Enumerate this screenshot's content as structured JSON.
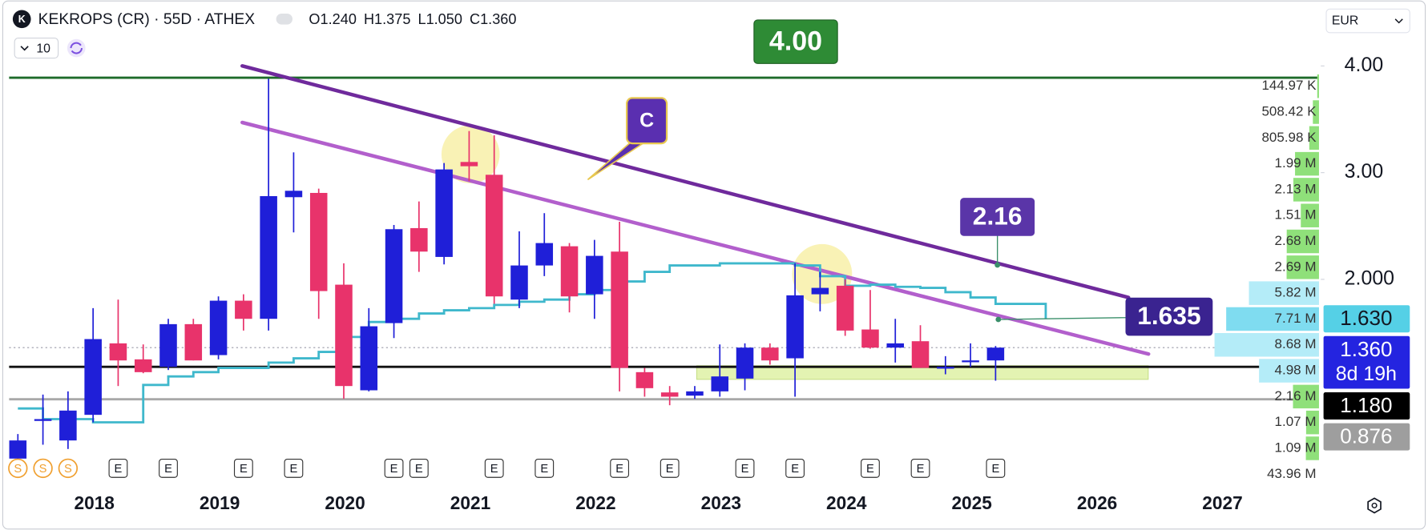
{
  "header": {
    "logo": "K",
    "title": "KEKROPS (CR) · 55D · ATHEX",
    "ohlc": [
      "O",
      "1.240",
      "H",
      "1.375",
      "L",
      "1.050",
      "C",
      "1.360"
    ],
    "interval_count": "10",
    "currency": "EUR"
  },
  "chart_data": {
    "type": "candlestick",
    "xlim": [
      2017.32,
      2027.77
    ],
    "xticks": [
      2018,
      2019,
      2020,
      2021,
      2022,
      2023,
      2024,
      2025,
      2026,
      2027
    ],
    "ylim": [
      0.11,
      4.55
    ],
    "yticks": [
      {
        "value": 4,
        "label": "4.00"
      },
      {
        "value": 3,
        "label": "3.00"
      },
      {
        "value": 2,
        "label": "2.000"
      }
    ],
    "log_scale": false,
    "grid": false,
    "up_color": "#1f1fd8",
    "down_color": "#e8336b",
    "candles": {
      "x": [
        2017.39,
        2017.59,
        2017.79,
        2017.99,
        2018.19,
        2018.39,
        2018.59,
        2018.79,
        2018.99,
        2019.19,
        2019.39,
        2019.59,
        2019.79,
        2019.99,
        2020.19,
        2020.39,
        2020.59,
        2020.79,
        2020.99,
        2021.19,
        2021.39,
        2021.59,
        2021.79,
        2021.99,
        2022.19,
        2022.39,
        2022.59,
        2022.79,
        2022.99,
        2023.19,
        2023.39,
        2023.59,
        2023.79,
        2023.99,
        2024.19,
        2024.39,
        2024.59,
        2024.79,
        2024.99,
        2025.19
      ],
      "open": [
        0.32,
        0.68,
        0.49,
        0.73,
        1.4,
        1.25,
        1.18,
        1.58,
        1.29,
        1.8,
        1.63,
        2.77,
        2.81,
        1.95,
        0.96,
        1.59,
        2.48,
        2.21,
        3.1,
        2.98,
        1.81,
        2.13,
        2.31,
        1.86,
        2.26,
        1.13,
        0.94,
        0.91,
        0.95,
        1.07,
        1.36,
        1.26,
        1.86,
        1.94,
        1.53,
        1.36,
        1.42,
        1.18,
        1.23,
        1.24
      ],
      "high": [
        0.55,
        0.92,
        0.95,
        1.73,
        1.81,
        1.39,
        1.63,
        1.63,
        1.84,
        1.86,
        3.88,
        3.19,
        2.85,
        2.15,
        1.73,
        2.51,
        2.73,
        3.09,
        3.39,
        3.35,
        2.45,
        2.62,
        2.34,
        2.37,
        2.54,
        1.17,
        1.0,
        1.0,
        1.39,
        1.4,
        1.4,
        2.15,
        2.07,
        2.0,
        1.9,
        1.63,
        1.57,
        1.28,
        1.4,
        1.375
      ],
      "low": [
        0.3,
        0.45,
        0.41,
        0.66,
        1.0,
        1.12,
        1.15,
        1.24,
        1.25,
        1.52,
        1.52,
        2.44,
        1.63,
        0.88,
        0.95,
        1.45,
        2.07,
        2.14,
        2.92,
        1.77,
        1.73,
        2.03,
        1.69,
        1.63,
        0.95,
        0.9,
        0.82,
        0.88,
        0.9,
        0.96,
        1.2,
        0.9,
        1.7,
        1.47,
        1.35,
        1.22,
        1.17,
        1.11,
        1.18,
        1.05
      ],
      "close": [
        0.49,
        0.69,
        0.77,
        1.44,
        1.24,
        1.13,
        1.58,
        1.24,
        1.8,
        1.63,
        2.78,
        2.83,
        1.89,
        1.0,
        1.56,
        2.47,
        2.26,
        3.03,
        3.06,
        1.84,
        2.13,
        2.34,
        1.84,
        2.22,
        1.17,
        0.98,
        0.9,
        0.95,
        1.09,
        1.36,
        1.24,
        1.85,
        1.92,
        1.52,
        1.36,
        1.4,
        1.17,
        1.18,
        1.24,
        1.36
      ]
    },
    "ma": {
      "color": "#3fb8cc",
      "x": [
        2017.39,
        2017.59,
        2017.79,
        2017.99,
        2018.19,
        2018.39,
        2018.59,
        2018.79,
        2018.99,
        2019.19,
        2019.39,
        2019.59,
        2019.79,
        2019.99,
        2020.19,
        2020.39,
        2020.59,
        2020.79,
        2020.99,
        2021.19,
        2021.39,
        2021.59,
        2021.79,
        2021.99,
        2022.19,
        2022.39,
        2022.59,
        2022.79,
        2022.99,
        2023.19,
        2023.39,
        2023.59,
        2023.79,
        2023.99,
        2024.19,
        2024.39,
        2024.59,
        2024.79,
        2024.99,
        2025.19,
        2025.59
      ],
      "values": [
        0.79,
        0.69,
        0.69,
        0.66,
        0.66,
        1.01,
        1.09,
        1.13,
        1.17,
        1.17,
        1.22,
        1.26,
        1.32,
        1.46,
        1.6,
        1.63,
        1.68,
        1.71,
        1.73,
        1.76,
        1.79,
        1.81,
        1.86,
        1.9,
        1.98,
        2.07,
        2.13,
        2.13,
        2.15,
        2.15,
        2.15,
        2.13,
        2.03,
        1.94,
        1.95,
        1.93,
        1.92,
        1.88,
        1.83,
        1.77,
        1.63
      ]
    },
    "trendlines": [
      {
        "color": "#6f2a9c",
        "x": [
          2019.18,
          2026.25
        ],
        "values": [
          4.0,
          1.83
        ]
      },
      {
        "color": "#b25fcc",
        "x": [
          2019.18,
          2026.41
        ],
        "values": [
          3.47,
          1.3
        ]
      }
    ],
    "price_lines": [
      {
        "value": 3.89,
        "color": "#1e6b2a",
        "style": "solid"
      },
      {
        "value": 1.36,
        "color": "#9a9aa8",
        "style": "dotted"
      },
      {
        "value": 1.18,
        "color": "#111111",
        "style": "solid"
      },
      {
        "value": 0.876,
        "color": "#a8a8a8",
        "style": "solid"
      }
    ],
    "axis_badges": [
      {
        "label": "1.630",
        "value": 1.63,
        "color": "#55d0e6",
        "text_color": "#131722"
      },
      {
        "label": "1.360",
        "sub": "8d 19h",
        "value": 1.36,
        "color": "#2424e0",
        "text_color": "#ffffff"
      },
      {
        "label": "1.180",
        "value": 1.18,
        "color": "#000000",
        "text_color": "#ffffff"
      },
      {
        "label": "0.876",
        "value": 0.876,
        "color": "#9e9e9e",
        "text_color": "#ffffff"
      }
    ],
    "annotations": {
      "top_badge": "4.00",
      "callout": "C",
      "upper_line_badge": "2.16",
      "lower_line_badge": "1.635"
    },
    "volume_profile": {
      "values": [
        144970,
        508420,
        805980,
        1990000,
        2130000,
        1510000,
        2680000,
        2690000,
        5820000,
        7710000,
        8680000,
        4980000,
        2160000,
        1070000,
        1090000
      ],
      "value_labels": [
        "144.97 K",
        "508.42 K",
        "805.98 K",
        "1.99 M",
        "2.13 M",
        "1.51 M",
        "2.68 M",
        "2.69 M",
        "5.82 M",
        "7.71 M",
        "8.68 M",
        "4.98 M",
        "2.16 M",
        "1.07 M",
        "1.09 M"
      ],
      "colors": [
        "#8fe07a",
        "#8fe07a",
        "#8fe07a",
        "#8fe07a",
        "#8fe07a",
        "#8fe07a",
        "#8fe07a",
        "#8fe07a",
        "#b4ecf8",
        "#7fdcf0",
        "#b4ecf8",
        "#b4ecf8",
        "#8fe07a",
        "#8fe07a",
        "#8fe07a"
      ],
      "total": 43960000,
      "total_label": "43.96 M"
    },
    "events": [
      {
        "x": 2017.39,
        "label": "S"
      },
      {
        "x": 2017.59,
        "label": "S"
      },
      {
        "x": 2017.79,
        "label": "S"
      },
      {
        "x": 2018.19,
        "label": "E"
      },
      {
        "x": 2018.59,
        "label": "E"
      },
      {
        "x": 2019.19,
        "label": "E"
      },
      {
        "x": 2019.59,
        "label": "E"
      },
      {
        "x": 2020.39,
        "label": "E"
      },
      {
        "x": 2020.59,
        "label": "E"
      },
      {
        "x": 2021.19,
        "label": "E"
      },
      {
        "x": 2021.59,
        "label": "E"
      },
      {
        "x": 2022.19,
        "label": "E"
      },
      {
        "x": 2022.59,
        "label": "E"
      },
      {
        "x": 2023.19,
        "label": "E"
      },
      {
        "x": 2023.59,
        "label": "E"
      },
      {
        "x": 2024.19,
        "label": "E"
      },
      {
        "x": 2024.59,
        "label": "E"
      },
      {
        "x": 2025.19,
        "label": "E"
      }
    ]
  }
}
